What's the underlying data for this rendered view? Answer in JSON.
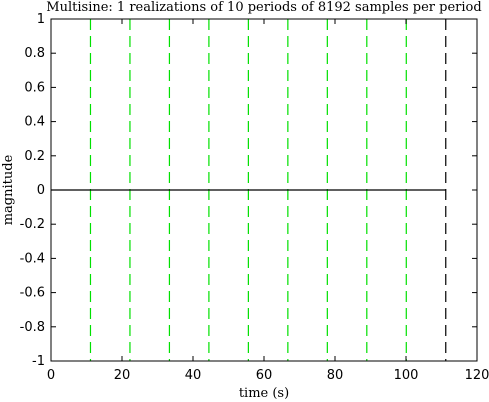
{
  "chart_data": {
    "type": "line",
    "title": "Multisine: 1 realizations of 10 periods of 8192 samples per period",
    "xlabel": "time (s)",
    "ylabel": "magnitude",
    "xlim": [
      0,
      120
    ],
    "ylim": [
      -1,
      1
    ],
    "x_ticks": [
      0,
      20,
      40,
      60,
      80,
      100,
      120
    ],
    "y_ticks": [
      -1,
      -0.8,
      -0.6,
      -0.4,
      -0.2,
      0,
      0.2,
      0.4,
      0.6,
      0.8,
      1
    ],
    "grid": false,
    "series": [
      {
        "color": "#000000",
        "x": [
          0,
          111.2
        ],
        "y": [
          0,
          0
        ]
      }
    ],
    "period_markers": {
      "color": "#00e000",
      "x": [
        11.12,
        22.24,
        33.36,
        44.48,
        55.6,
        66.72,
        77.84,
        88.96,
        100.08
      ]
    },
    "end_marker": {
      "color": "#000000",
      "x": 111.2
    }
  }
}
